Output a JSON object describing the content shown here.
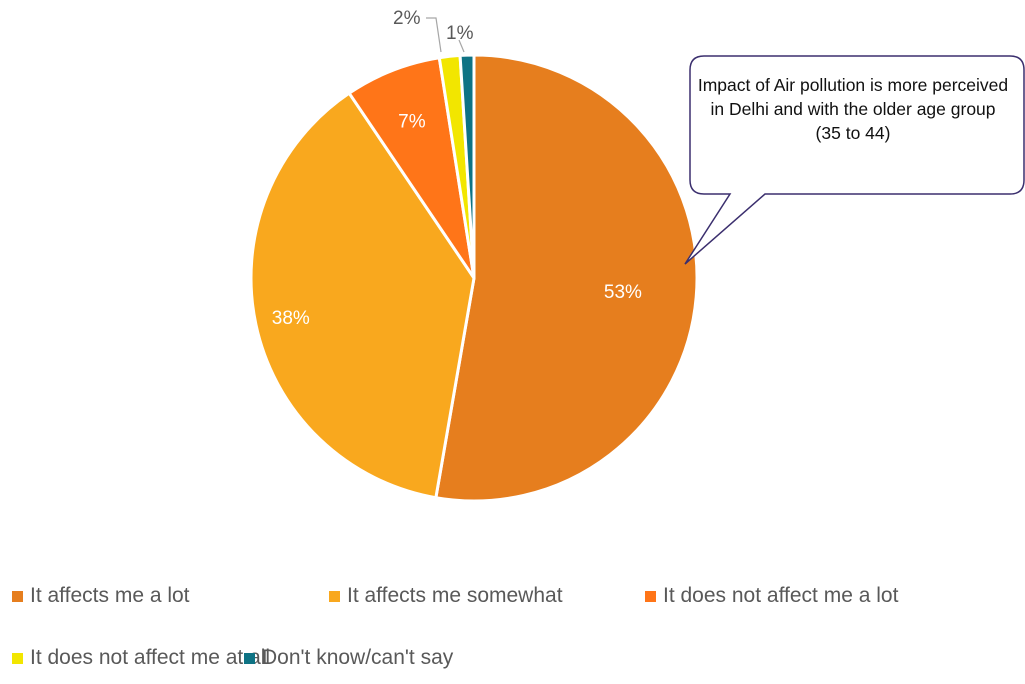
{
  "chart_data": {
    "type": "pie",
    "slices": [
      {
        "name": "It affects me a lot",
        "value": 53,
        "label": "53%",
        "color": "#E67E1E"
      },
      {
        "name": "It affects me somewhat",
        "value": 38,
        "label": "38%",
        "color": "#F9A81E"
      },
      {
        "name": "It does not affect me a lot",
        "value": 7,
        "label": "7%",
        "color": "#FF7518"
      },
      {
        "name": "It does not affect me at all",
        "value": 1.5,
        "label": "2%",
        "color": "#F2E600"
      },
      {
        "name": "Don't know/can't say",
        "value": 1,
        "label": "1%",
        "color": "#0E7384"
      }
    ],
    "legend_position": "bottom",
    "start_angle": "12 o'clock, clockwise",
    "annotation": "Impact of Air pollution is more perceived in Delhi and with the older age group (35 to 44)"
  }
}
